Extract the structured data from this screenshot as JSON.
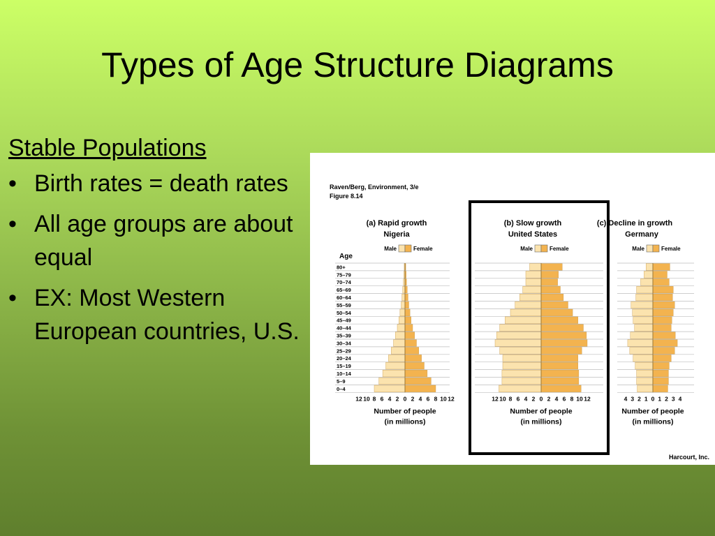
{
  "slide": {
    "title": "Types of Age Structure Diagrams",
    "heading": "Stable Populations",
    "bullets": [
      "Birth rates = death rates",
      "All age groups are about equal",
      "EX:  Most Western European countries, U.S."
    ]
  },
  "figure": {
    "source_line1": "Raven/Berg, Environment, 3/e",
    "source_line2": "Figure 8.14",
    "credit": "Harcourt, Inc.",
    "age_axis_label": "Age",
    "x_axis_label": "Number of people",
    "x_axis_units": "(in millions)",
    "male_label": "Male",
    "female_label": "Female",
    "highlighted_panel": 1,
    "colors": {
      "male": "#fbe3ae",
      "female": "#f3b34f",
      "grid": "#bdbdbd",
      "highlight_border": "#000000"
    }
  },
  "chart_data": [
    {
      "type": "bar",
      "title": "(a) Rapid growth",
      "subtitle": "Nigeria",
      "age_groups": [
        "80+",
        "75–79",
        "70–74",
        "65–69",
        "60–64",
        "55–59",
        "50–54",
        "45–49",
        "40–44",
        "35–39",
        "30–34",
        "25–29",
        "20–24",
        "15–19",
        "10–14",
        "5–9",
        "0–4"
      ],
      "xticks": [
        "12",
        "10",
        "8",
        "6",
        "4",
        "2",
        "0",
        "2",
        "4",
        "6",
        "8",
        "10",
        "12"
      ],
      "xlim": [
        -12,
        12
      ],
      "series": [
        {
          "name": "Male",
          "values": [
            0.2,
            0.3,
            0.4,
            0.6,
            0.8,
            1.0,
            1.3,
            1.6,
            2.0,
            2.5,
            3.0,
            3.6,
            4.3,
            5.0,
            5.8,
            6.8,
            8.0
          ]
        },
        {
          "name": "Female",
          "values": [
            0.2,
            0.3,
            0.4,
            0.6,
            0.8,
            1.0,
            1.3,
            1.6,
            2.0,
            2.5,
            3.0,
            3.6,
            4.3,
            5.0,
            5.8,
            6.8,
            8.0
          ]
        }
      ]
    },
    {
      "type": "bar",
      "title": "(b) Slow growth",
      "subtitle": "United States",
      "age_groups": [
        "80+",
        "75–79",
        "70–74",
        "65–69",
        "60–64",
        "55–59",
        "50–54",
        "45–49",
        "40–44",
        "35–39",
        "30–34",
        "25–29",
        "20–24",
        "15–19",
        "10–14",
        "5–9",
        "0–4"
      ],
      "xticks": [
        "12",
        "10",
        "8",
        "6",
        "4",
        "2",
        "0",
        "2",
        "4",
        "6",
        "8",
        "10",
        "12"
      ],
      "xlim": [
        -12,
        12
      ],
      "series": [
        {
          "name": "Male",
          "values": [
            3.0,
            4.0,
            4.0,
            4.8,
            5.6,
            6.8,
            8.0,
            9.4,
            10.8,
            11.6,
            12.0,
            10.8,
            10.0,
            10.0,
            10.2,
            10.2,
            11.0
          ]
        },
        {
          "name": "Female",
          "values": [
            5.5,
            4.5,
            4.3,
            5.0,
            5.8,
            7.0,
            8.2,
            9.6,
            11.0,
            11.8,
            12.0,
            10.6,
            9.6,
            9.6,
            9.8,
            9.8,
            10.4
          ]
        }
      ]
    },
    {
      "type": "bar",
      "title": "(c) Decline in growth",
      "subtitle": "Germany",
      "age_groups": [
        "80+",
        "75–79",
        "70–74",
        "65–69",
        "60–64",
        "55–59",
        "50–54",
        "45–49",
        "40–44",
        "35–39",
        "30–34",
        "25–29",
        "20–24",
        "15–19",
        "10–14",
        "5–9",
        "0–4"
      ],
      "xticks": [
        "4",
        "3",
        "2",
        "1",
        "0",
        "1",
        "2",
        "3",
        "4"
      ],
      "xlim": [
        -4,
        4
      ],
      "series": [
        {
          "name": "Male",
          "values": [
            1.0,
            1.3,
            1.8,
            2.4,
            2.5,
            3.2,
            3.0,
            2.9,
            2.7,
            3.3,
            3.7,
            3.4,
            2.9,
            2.6,
            2.4,
            2.4,
            2.3
          ]
        },
        {
          "name": "Female",
          "values": [
            2.5,
            2.1,
            2.4,
            3.0,
            2.9,
            3.2,
            3.0,
            2.8,
            2.7,
            3.3,
            3.6,
            3.2,
            2.7,
            2.4,
            2.3,
            2.3,
            2.2
          ]
        }
      ]
    }
  ]
}
